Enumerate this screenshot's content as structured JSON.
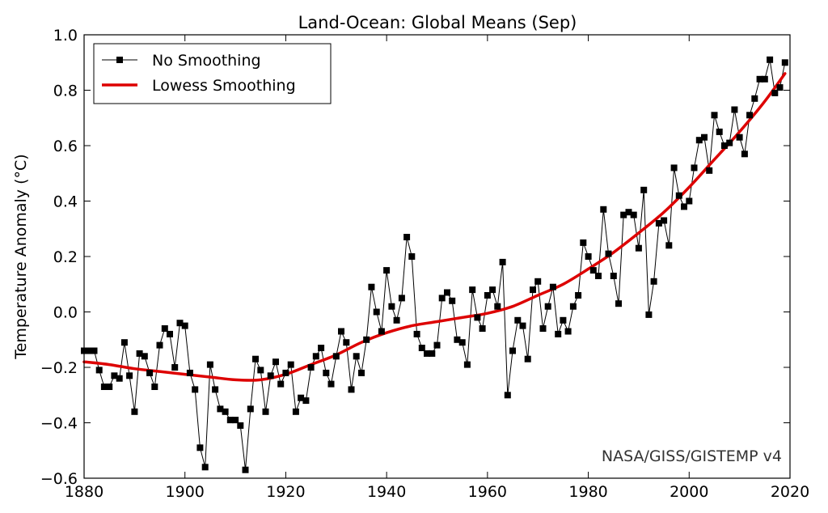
{
  "chart_data": {
    "type": "line",
    "title": "Land-Ocean: Global Means (Sep)",
    "xlabel": "",
    "ylabel": "Temperature Anomaly (°C)",
    "xlim": [
      1880,
      2020
    ],
    "ylim": [
      -0.6,
      1.0
    ],
    "xticks": [
      "1880",
      "1900",
      "1920",
      "1940",
      "1960",
      "1980",
      "2000",
      "2020"
    ],
    "yticks": [
      "−0.6",
      "−0.4",
      "−0.2",
      "0.0",
      "0.2",
      "0.4",
      "0.6",
      "0.8",
      "1.0"
    ],
    "grid": false,
    "legend_position": "top-left",
    "credit": "NASA/GISS/GISTEMP v4",
    "series": [
      {
        "name": "No Smoothing",
        "color": "#000000",
        "marker": "square",
        "x": [
          1880,
          1881,
          1882,
          1883,
          1884,
          1885,
          1886,
          1887,
          1888,
          1889,
          1890,
          1891,
          1892,
          1893,
          1894,
          1895,
          1896,
          1897,
          1898,
          1899,
          1900,
          1901,
          1902,
          1903,
          1904,
          1905,
          1906,
          1907,
          1908,
          1909,
          1910,
          1911,
          1912,
          1913,
          1914,
          1915,
          1916,
          1917,
          1918,
          1919,
          1920,
          1921,
          1922,
          1923,
          1924,
          1925,
          1926,
          1927,
          1928,
          1929,
          1930,
          1931,
          1932,
          1933,
          1934,
          1935,
          1936,
          1937,
          1938,
          1939,
          1940,
          1941,
          1942,
          1943,
          1944,
          1945,
          1946,
          1947,
          1948,
          1949,
          1950,
          1951,
          1952,
          1953,
          1954,
          1955,
          1956,
          1957,
          1958,
          1959,
          1960,
          1961,
          1962,
          1963,
          1964,
          1965,
          1966,
          1967,
          1968,
          1969,
          1970,
          1971,
          1972,
          1973,
          1974,
          1975,
          1976,
          1977,
          1978,
          1979,
          1980,
          1981,
          1982,
          1983,
          1984,
          1985,
          1986,
          1987,
          1988,
          1989,
          1990,
          1991,
          1992,
          1993,
          1994,
          1995,
          1996,
          1997,
          1998,
          1999,
          2000,
          2001,
          2002,
          2003,
          2004,
          2005,
          2006,
          2007,
          2008,
          2009,
          2010,
          2011,
          2012,
          2013,
          2014,
          2015,
          2016,
          2017,
          2018,
          2019
        ],
        "y": [
          -0.14,
          -0.14,
          -0.14,
          -0.21,
          -0.27,
          -0.27,
          -0.23,
          -0.24,
          -0.11,
          -0.23,
          -0.36,
          -0.15,
          -0.16,
          -0.22,
          -0.27,
          -0.12,
          -0.06,
          -0.08,
          -0.2,
          -0.04,
          -0.05,
          -0.22,
          -0.28,
          -0.49,
          -0.56,
          -0.19,
          -0.28,
          -0.35,
          -0.36,
          -0.39,
          -0.39,
          -0.41,
          -0.57,
          -0.35,
          -0.17,
          -0.21,
          -0.36,
          -0.23,
          -0.18,
          -0.26,
          -0.22,
          -0.19,
          -0.36,
          -0.31,
          -0.32,
          -0.2,
          -0.16,
          -0.13,
          -0.22,
          -0.26,
          -0.16,
          -0.07,
          -0.11,
          -0.28,
          -0.16,
          -0.22,
          -0.1,
          0.09,
          0.0,
          -0.07,
          0.15,
          0.02,
          -0.03,
          0.05,
          0.27,
          0.2,
          -0.08,
          -0.13,
          -0.15,
          -0.15,
          -0.12,
          0.05,
          0.07,
          0.04,
          -0.1,
          -0.11,
          -0.19,
          0.08,
          -0.02,
          -0.06,
          0.06,
          0.08,
          0.02,
          0.18,
          -0.3,
          -0.14,
          -0.03,
          -0.05,
          -0.17,
          0.08,
          0.11,
          -0.06,
          0.02,
          0.09,
          -0.08,
          -0.03,
          -0.07,
          0.02,
          0.06,
          0.25,
          0.2,
          0.15,
          0.13,
          0.37,
          0.21,
          0.13,
          0.03,
          0.35,
          0.36,
          0.35,
          0.23,
          0.44,
          -0.01,
          0.11,
          0.32,
          0.33,
          0.24,
          0.52,
          0.42,
          0.38,
          0.4,
          0.52,
          0.62,
          0.63,
          0.51,
          0.71,
          0.65,
          0.6,
          0.61,
          0.73,
          0.63,
          0.57,
          0.71,
          0.77,
          0.84,
          0.84,
          0.91,
          0.79,
          0.81,
          0.9
        ]
      },
      {
        "name": "Lowess Smoothing",
        "color": "#dd0000",
        "x": [
          1880,
          1885,
          1890,
          1895,
          1900,
          1905,
          1910,
          1915,
          1920,
          1925,
          1930,
          1935,
          1940,
          1945,
          1950,
          1955,
          1960,
          1965,
          1970,
          1975,
          1980,
          1985,
          1990,
          1995,
          2000,
          2005,
          2010,
          2015,
          2019
        ],
        "y": [
          -0.18,
          -0.19,
          -0.205,
          -0.215,
          -0.225,
          -0.235,
          -0.245,
          -0.245,
          -0.225,
          -0.19,
          -0.155,
          -0.11,
          -0.075,
          -0.05,
          -0.035,
          -0.02,
          -0.005,
          0.02,
          0.06,
          0.1,
          0.155,
          0.215,
          0.285,
          0.36,
          0.45,
          0.55,
          0.65,
          0.76,
          0.86
        ]
      }
    ]
  }
}
